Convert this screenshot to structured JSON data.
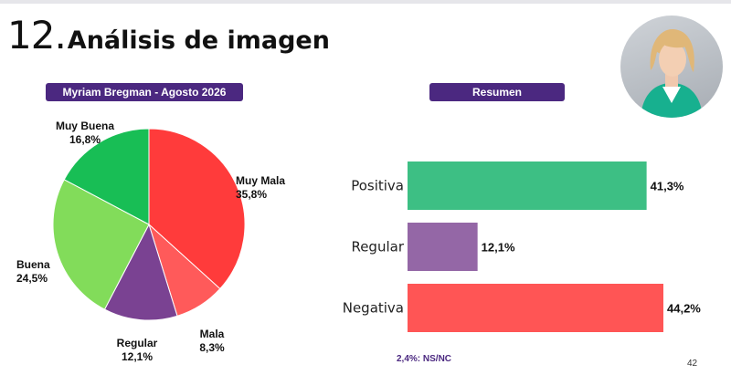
{
  "header": {
    "number": "12.",
    "title": "Análisis de imagen"
  },
  "colors": {
    "accent": "#4b2880"
  },
  "left_panel": {
    "label": "Myriam Bregman - Agosto 2026"
  },
  "right_panel": {
    "label": "Resumen"
  },
  "photo": {
    "icon": "person-photo"
  },
  "footnote": "2,4%: NS/NC",
  "page_number": "42",
  "chart_data": [
    {
      "type": "pie",
      "title": "",
      "slices": [
        {
          "label": "Muy Mala",
          "value": 35.8,
          "display": "35,8%",
          "color": "#ff3b3b"
        },
        {
          "label": "Mala",
          "value": 8.3,
          "display": "8,3%",
          "color": "#ff5a5a"
        },
        {
          "label": "Regular",
          "value": 12.1,
          "display": "12,1%",
          "color": "#7a4292"
        },
        {
          "label": "Buena",
          "value": 24.5,
          "display": "24,5%",
          "color": "#82dc5a"
        },
        {
          "label": "Muy Buena",
          "value": 16.8,
          "display": "16,8%",
          "color": "#18be55"
        }
      ]
    },
    {
      "type": "bar",
      "orientation": "horizontal",
      "title": "",
      "categories": [
        "Positiva",
        "Regular",
        "Negativa"
      ],
      "values": [
        41.3,
        12.1,
        44.2
      ],
      "display": [
        "41,3%",
        "12,1%",
        "44,2%"
      ],
      "colors": [
        "#3dbf84",
        "#9467a6",
        "#ff5555"
      ],
      "xlim": [
        0,
        44.2
      ]
    }
  ]
}
